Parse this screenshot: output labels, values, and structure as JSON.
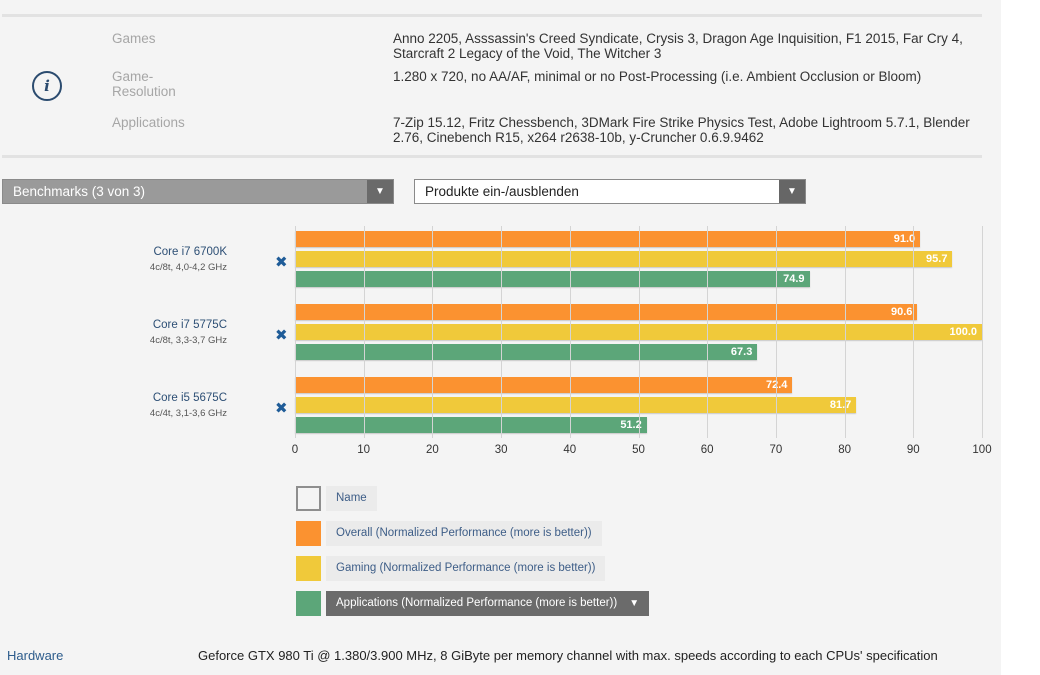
{
  "info": {
    "rows": [
      {
        "label": "Games",
        "value": "Anno 2205, Asssassin's Creed Syndicate, Crysis 3, Dragon Age Inquisition, F1 2015, Far Cry 4, Starcraft 2 Legacy of the Void, The Witcher 3"
      },
      {
        "label": "Game-\nResolution",
        "value": "1.280 x 720, no AA/AF, minimal or no Post-Processing (i.e. Ambient Occlusion or Bloom)"
      },
      {
        "label": "Applications",
        "value": "7-Zip 15.12, Fritz Chessbench, 3DMark Fire Strike Physics Test, Adobe Lightroom 5.7.1, Blender 2.76, Cinebench R15, x264 r2638-10b, y-Cruncher 0.6.9.9462"
      }
    ],
    "icon": "info-icon"
  },
  "controls": {
    "benchmarks_dropdown": "Benchmarks (3 von 3)",
    "products_dropdown": "Produkte ein-/ausblenden",
    "arrow": "▼"
  },
  "chart_data": {
    "type": "bar",
    "orientation": "horizontal",
    "categories": [
      {
        "name": "Core i7 6700K",
        "spec": "4c/8t, 4,0-4,2 GHz"
      },
      {
        "name": "Core i7 5775C",
        "spec": "4c/8t, 3,3-3,7 GHz"
      },
      {
        "name": "Core i5 5675C",
        "spec": "4c/4t, 3,1-3,6 GHz"
      }
    ],
    "series": [
      {
        "name": "Overall (Normalized Performance (more is better))",
        "color": "#fb9230",
        "values": [
          91.0,
          90.6,
          72.4
        ]
      },
      {
        "name": "Gaming (Normalized Performance (more is better))",
        "color": "#f0c93a",
        "values": [
          95.7,
          100.0,
          81.7
        ]
      },
      {
        "name": "Applications (Normalized Performance (more is better))",
        "color": "#5ca679",
        "values": [
          74.9,
          67.3,
          51.2
        ]
      }
    ],
    "xlim": [
      0,
      100
    ],
    "xticks": [
      0,
      10,
      20,
      30,
      40,
      50,
      60,
      70,
      80,
      90,
      100
    ],
    "grid": true,
    "legend_position": "bottom",
    "remove_icon": "✖"
  },
  "legend": {
    "name_item": "Name",
    "active_index": 2,
    "arrow": "▼"
  },
  "footer": {
    "hardware_label": "Hardware",
    "hardware_value": "Geforce GTX 980 Ti @ 1.380/3.900 MHz, 8 GiByte per memory channel with max. speeds according to each CPUs' specification"
  }
}
